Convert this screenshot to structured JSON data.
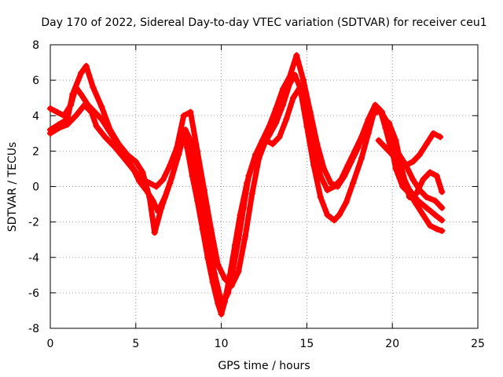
{
  "chart_data": {
    "type": "scatter",
    "title": "Day 170 of 2022, Sidereal Day-to-day VTEC variation (SDTVAR) for receiver ceu1",
    "xlabel": "GPS time / hours",
    "ylabel": "SDTVAR / TECUs",
    "xlim": [
      0,
      25
    ],
    "ylim": [
      -8,
      8
    ],
    "xticks": [
      "0",
      "5",
      "10",
      "15",
      "20",
      "25"
    ],
    "yticks": [
      "8",
      "6",
      "4",
      "2",
      "0",
      "-2",
      "-4",
      "-6",
      "-8"
    ],
    "xtick_values": [
      0,
      5,
      10,
      15,
      20,
      25
    ],
    "ytick_values": [
      8,
      6,
      4,
      2,
      0,
      -2,
      -4,
      -6,
      -8
    ],
    "grid": true,
    "marker": "plus",
    "color": "#ff0000",
    "series": [
      {
        "x": [
          0.0,
          0.5,
          1.0,
          1.5,
          2.0,
          2.4,
          2.7,
          3.2,
          3.8,
          4.4,
          4.9,
          5.2,
          5.6,
          6.0,
          6.3,
          6.7,
          7.1,
          7.5,
          7.9,
          8.2,
          8.6,
          9.0,
          9.3,
          9.6,
          9.9,
          10.1,
          10.4,
          10.7,
          11.0,
          11.3,
          11.6,
          12.0,
          12.4,
          12.8,
          13.2,
          13.6,
          14.0,
          14.3,
          14.6,
          15.0,
          15.4,
          15.8,
          16.2,
          16.6,
          16.9,
          17.3,
          17.7,
          18.2,
          18.6,
          18.9,
          19.3,
          19.6,
          20.0,
          20.5,
          21.0,
          21.5,
          22.0,
          22.5,
          22.9
        ],
        "values": [
          3.0,
          3.3,
          3.5,
          4.0,
          4.6,
          4.2,
          3.4,
          2.8,
          2.2,
          1.5,
          0.9,
          0.3,
          -0.2,
          -0.8,
          -1.4,
          -0.6,
          0.5,
          1.8,
          3.2,
          2.6,
          0.6,
          -1.5,
          -3.2,
          -4.9,
          -6.1,
          -6.6,
          -6.0,
          -4.6,
          -3.0,
          -1.2,
          0.6,
          1.8,
          2.2,
          2.9,
          3.6,
          4.6,
          5.8,
          6.3,
          5.6,
          3.4,
          1.2,
          -0.6,
          -1.6,
          -1.9,
          -1.6,
          -0.9,
          0.2,
          1.6,
          3.0,
          4.1,
          4.3,
          3.3,
          1.8,
          0.8,
          -0.2,
          -0.8,
          -1.2,
          -1.6,
          -1.9
        ]
      },
      {
        "x": [
          0.0,
          0.5,
          1.0,
          1.3,
          1.8,
          2.1,
          2.5,
          3.0,
          3.5,
          4.0,
          4.5,
          5.0,
          5.4,
          5.8,
          6.1,
          6.5,
          7.0,
          7.5,
          7.8,
          8.0,
          8.3,
          8.6,
          8.9,
          9.2,
          9.5,
          9.8,
          10.0,
          10.2,
          10.5,
          10.8,
          11.1,
          11.5,
          12.0,
          12.4,
          12.8,
          13.2,
          13.6,
          14.0,
          14.4,
          14.8,
          15.2,
          15.6,
          16.0,
          16.4,
          16.8,
          17.2,
          17.6,
          18.0,
          18.4,
          18.8,
          19.2,
          19.6,
          20.0,
          20.4,
          20.8,
          21.2,
          21.6,
          22.0,
          22.5,
          22.9
        ],
        "values": [
          3.2,
          3.5,
          3.8,
          5.2,
          6.4,
          6.8,
          5.6,
          4.5,
          3.2,
          2.4,
          1.8,
          1.4,
          0.8,
          -0.6,
          -2.6,
          -1.2,
          0.2,
          1.8,
          3.1,
          2.2,
          0.6,
          -0.8,
          -2.4,
          -4.0,
          -5.4,
          -6.6,
          -7.2,
          -6.5,
          -5.0,
          -3.3,
          -1.6,
          0.2,
          1.8,
          2.6,
          3.4,
          4.4,
          5.5,
          6.2,
          7.4,
          6.0,
          4.2,
          2.4,
          1.0,
          0.2,
          0.0,
          0.6,
          1.4,
          2.2,
          3.2,
          4.0,
          4.4,
          3.8,
          2.5,
          1.8,
          1.2,
          0.4,
          -0.2,
          -0.6,
          -0.8,
          -1.2
        ]
      },
      {
        "x": [
          0.0,
          0.4,
          0.8,
          1.2,
          1.5,
          1.8,
          2.2,
          2.6,
          3.0,
          3.4,
          3.8,
          4.2,
          4.6,
          5.0,
          5.4,
          5.8,
          6.2,
          6.6,
          7.0,
          7.4,
          7.8,
          8.2,
          8.6,
          9.0,
          9.4,
          9.8,
          10.2,
          10.6,
          11.0,
          11.4,
          11.8,
          12.2,
          12.6,
          13.0,
          13.4,
          13.8,
          14.2,
          14.6,
          15.0,
          15.4,
          15.8,
          16.2,
          16.6,
          17.0,
          17.4,
          17.8,
          18.2,
          18.6,
          19.0,
          19.4,
          19.8,
          20.2,
          20.6,
          21.0,
          21.4,
          21.8,
          22.2,
          22.6,
          22.9
        ],
        "values": [
          4.4,
          4.2,
          4.0,
          4.6,
          5.6,
          5.2,
          4.6,
          4.2,
          3.8,
          3.2,
          2.6,
          2.0,
          1.4,
          0.8,
          0.4,
          0.2,
          0.0,
          0.4,
          1.2,
          2.2,
          4.0,
          4.2,
          2.0,
          -0.2,
          -2.4,
          -4.4,
          -5.2,
          -5.6,
          -4.8,
          -2.8,
          -0.4,
          1.6,
          2.6,
          2.4,
          2.8,
          3.8,
          5.0,
          5.6,
          4.2,
          2.4,
          0.6,
          -0.2,
          0.0,
          0.4,
          1.2,
          2.0,
          2.8,
          3.8,
          4.6,
          4.2,
          3.0,
          1.0,
          0.0,
          -0.4,
          -1.0,
          -1.6,
          -2.2,
          -2.4,
          -2.5
        ]
      },
      {
        "x": [
          19.2,
          19.6,
          20.0,
          20.4,
          20.8,
          21.2,
          21.6,
          22.0,
          22.4,
          22.8
        ],
        "values": [
          2.6,
          2.2,
          1.8,
          1.4,
          1.2,
          1.4,
          1.8,
          2.4,
          3.0,
          2.8
        ]
      },
      {
        "x": [
          19.8,
          20.2,
          20.6,
          21.0,
          21.4,
          21.8,
          22.2,
          22.6,
          22.9
        ],
        "values": [
          3.6,
          2.6,
          0.8,
          -0.6,
          -0.4,
          0.4,
          0.8,
          0.6,
          -0.3
        ]
      }
    ]
  }
}
